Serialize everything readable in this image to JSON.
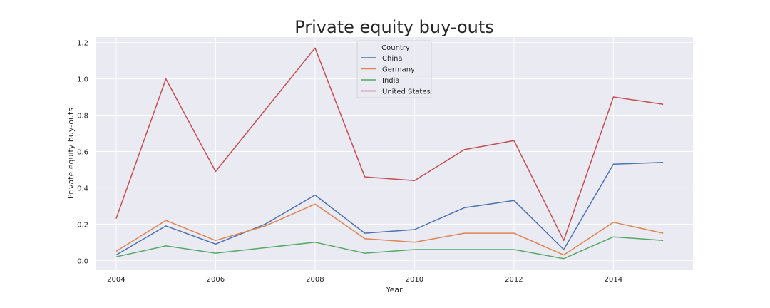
{
  "chart_data": {
    "type": "line",
    "title": "Private equity buy-outs",
    "xlabel": "Year",
    "ylabel": "Private equity buy-outs",
    "xlim": [
      2003.6,
      2015.6
    ],
    "ylim": [
      -0.05,
      1.23
    ],
    "x_ticks": [
      "2004",
      "2006",
      "2008",
      "2010",
      "2012",
      "2014"
    ],
    "y_ticks": [
      "0.0",
      "0.2",
      "0.4",
      "0.6",
      "0.8",
      "1.0",
      "1.2"
    ],
    "grid": true,
    "legend": {
      "title": "Country",
      "placement": "top-center"
    },
    "x": [
      2004,
      2005,
      2006,
      2007,
      2008,
      2009,
      2010,
      2011,
      2012,
      2013,
      2014,
      2015
    ],
    "series": [
      {
        "name": "China",
        "color": "#4c72b0",
        "values": [
          0.03,
          0.19,
          0.09,
          0.2,
          0.36,
          0.15,
          0.17,
          0.29,
          0.33,
          0.06,
          0.53,
          0.54
        ]
      },
      {
        "name": "Germany",
        "color": "#dd8452",
        "values": [
          0.05,
          0.22,
          0.11,
          0.19,
          0.31,
          0.12,
          0.1,
          0.15,
          0.15,
          0.03,
          0.21,
          0.15
        ]
      },
      {
        "name": "India",
        "color": "#55a868",
        "values": [
          0.02,
          0.08,
          0.04,
          0.07,
          0.1,
          0.04,
          0.06,
          0.06,
          0.06,
          0.01,
          0.13,
          0.11
        ]
      },
      {
        "name": "United States",
        "color": "#c44e52",
        "values": [
          0.23,
          1.0,
          0.49,
          0.83,
          1.17,
          0.46,
          0.44,
          0.61,
          0.66,
          0.11,
          0.9,
          0.86
        ]
      }
    ]
  }
}
